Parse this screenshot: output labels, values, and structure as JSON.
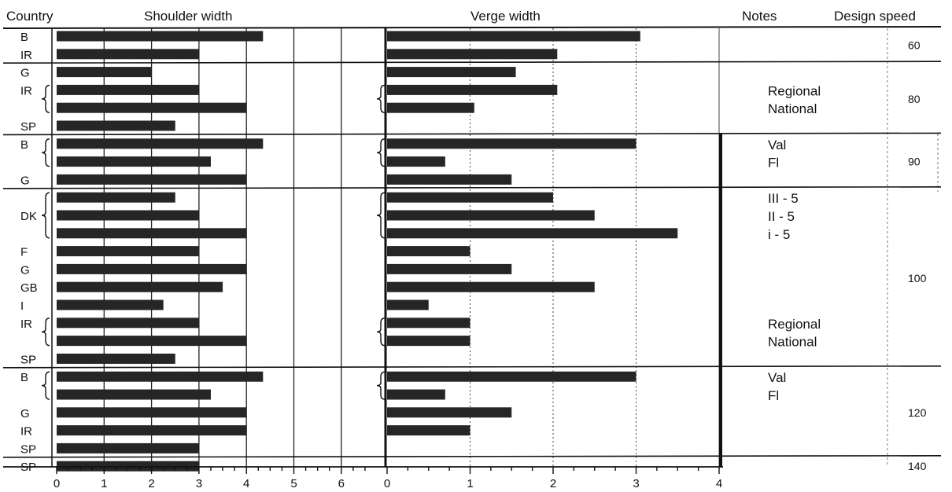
{
  "chart_data": {
    "type": "bar",
    "headers": {
      "country": "Country",
      "shoulder": "Shoulder width",
      "verge": "Verge width",
      "notes": "Notes",
      "design_speed": "Design speed"
    },
    "rows": [
      {
        "country": "B",
        "shoulder": 4.35,
        "verge": 3.05
      },
      {
        "country": "IR",
        "shoulder": 3.0,
        "verge": 2.05
      },
      {
        "country": "G",
        "shoulder": 2.0,
        "verge": 1.55
      },
      {
        "country": "IR",
        "shoulder": 3.0,
        "verge": 2.05,
        "note": "Regional",
        "bracket_start": true
      },
      {
        "country": "",
        "shoulder": 4.0,
        "verge": 1.05,
        "note": "National",
        "bracket_end": true
      },
      {
        "country": "SP",
        "shoulder": 2.5,
        "verge": 0.0
      },
      {
        "country": "B",
        "shoulder": 4.35,
        "verge": 3.0,
        "note": "Val",
        "bracket_start": true
      },
      {
        "country": "",
        "shoulder": 3.25,
        "verge": 0.7,
        "note": "Fl",
        "bracket_end": true
      },
      {
        "country": "G",
        "shoulder": 4.0,
        "verge": 1.5
      },
      {
        "country": "",
        "shoulder": 2.5,
        "verge": 2.0,
        "note": "III - 5",
        "bracket_start": true
      },
      {
        "country": "DK",
        "shoulder": 3.0,
        "verge": 2.5,
        "note": "II  - 5"
      },
      {
        "country": "",
        "shoulder": 4.0,
        "verge": 3.5,
        "note": "i   - 5",
        "bracket_end": true
      },
      {
        "country": "F",
        "shoulder": 3.0,
        "verge": 1.0
      },
      {
        "country": "G",
        "shoulder": 4.0,
        "verge": 1.5
      },
      {
        "country": "GB",
        "shoulder": 3.5,
        "verge": 2.5
      },
      {
        "country": "I",
        "shoulder": 2.25,
        "verge": 0.5
      },
      {
        "country": "IR",
        "shoulder": 3.0,
        "verge": 1.0,
        "note": "Regional",
        "bracket_start": true
      },
      {
        "country": "",
        "shoulder": 4.0,
        "verge": 1.0,
        "note": "National",
        "bracket_end": true
      },
      {
        "country": "SP",
        "shoulder": 2.5,
        "verge": 0.0
      },
      {
        "country": "B",
        "shoulder": 4.35,
        "verge": 3.0,
        "note": "Val",
        "bracket_start": true
      },
      {
        "country": "",
        "shoulder": 3.25,
        "verge": 0.7,
        "note": "Fl",
        "bracket_end": true
      },
      {
        "country": "G",
        "shoulder": 4.0,
        "verge": 1.5
      },
      {
        "country": "IR",
        "shoulder": 4.0,
        "verge": 1.0
      },
      {
        "country": "SP",
        "shoulder": 3.0,
        "verge": 0.0
      },
      {
        "country": "SP",
        "shoulder": 3.0,
        "verge": 0.0
      }
    ],
    "speed_groups": [
      {
        "speed": "60",
        "first_row": 0,
        "last_row": 1
      },
      {
        "speed": "80",
        "first_row": 2,
        "last_row": 5
      },
      {
        "speed": "90",
        "first_row": 6,
        "last_row": 8
      },
      {
        "speed": "100",
        "first_row": 9,
        "last_row": 18
      },
      {
        "speed": "120",
        "first_row": 19,
        "last_row": 23
      },
      {
        "speed": "140",
        "first_row": 24,
        "last_row": 24
      }
    ],
    "shoulder_axis": {
      "ticks": [
        "0",
        "1",
        "2",
        "3",
        "4",
        "5",
        "6"
      ],
      "xlim": [
        0,
        6.6
      ]
    },
    "verge_axis": {
      "ticks": [
        "0",
        "1",
        "2",
        "3",
        "4"
      ],
      "xlim": [
        0,
        4
      ]
    },
    "grid": true
  }
}
